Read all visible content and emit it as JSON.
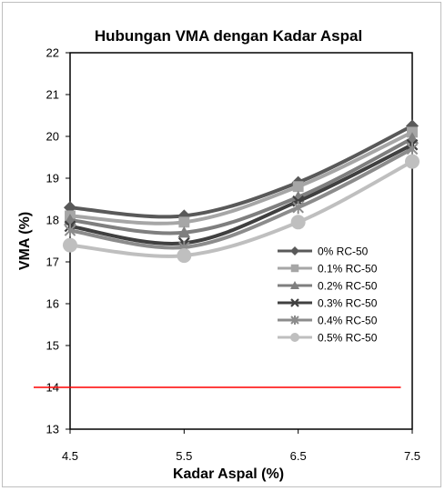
{
  "chart_data": {
    "type": "line",
    "title": "Hubungan VMA dengan Kadar Aspal",
    "xlabel": "Kadar Aspal (%)",
    "ylabel": "VMA (%)",
    "x": [
      4.5,
      5.5,
      6.5,
      7.5
    ],
    "x_tick_labels": [
      "4.5",
      "5.5",
      "6.5",
      "7.5"
    ],
    "xlim": [
      4.5,
      7.5
    ],
    "ylim": [
      13,
      22
    ],
    "y_ticks": [
      13,
      14,
      15,
      16,
      17,
      18,
      19,
      20,
      21,
      22
    ],
    "grid": false,
    "smooth": true,
    "legend_position": "right",
    "series": [
      {
        "name": "0% RC-50",
        "values": [
          18.3,
          18.1,
          18.9,
          20.25
        ],
        "color": "#595959",
        "marker": "diamond"
      },
      {
        "name": "0.1% RC-50",
        "values": [
          18.1,
          17.95,
          18.8,
          20.1
        ],
        "color": "#a6a6a6",
        "marker": "square"
      },
      {
        "name": "0.2% RC-50",
        "values": [
          18.0,
          17.7,
          18.55,
          19.95
        ],
        "color": "#7f7f7f",
        "marker": "triangle"
      },
      {
        "name": "0.3% RC-50",
        "values": [
          17.85,
          17.45,
          18.45,
          19.8
        ],
        "color": "#404040",
        "marker": "x"
      },
      {
        "name": "0.4% RC-50",
        "values": [
          17.75,
          17.35,
          18.3,
          19.7
        ],
        "color": "#8c8c8c",
        "marker": "asterisk"
      },
      {
        "name": "0.5% RC-50",
        "values": [
          17.4,
          17.15,
          17.95,
          19.4
        ],
        "color": "#bfbfbf",
        "marker": "circle"
      }
    ],
    "reference_line": {
      "y": 14,
      "x_range": [
        4.5,
        7.4
      ],
      "color": "#ff0000"
    }
  }
}
